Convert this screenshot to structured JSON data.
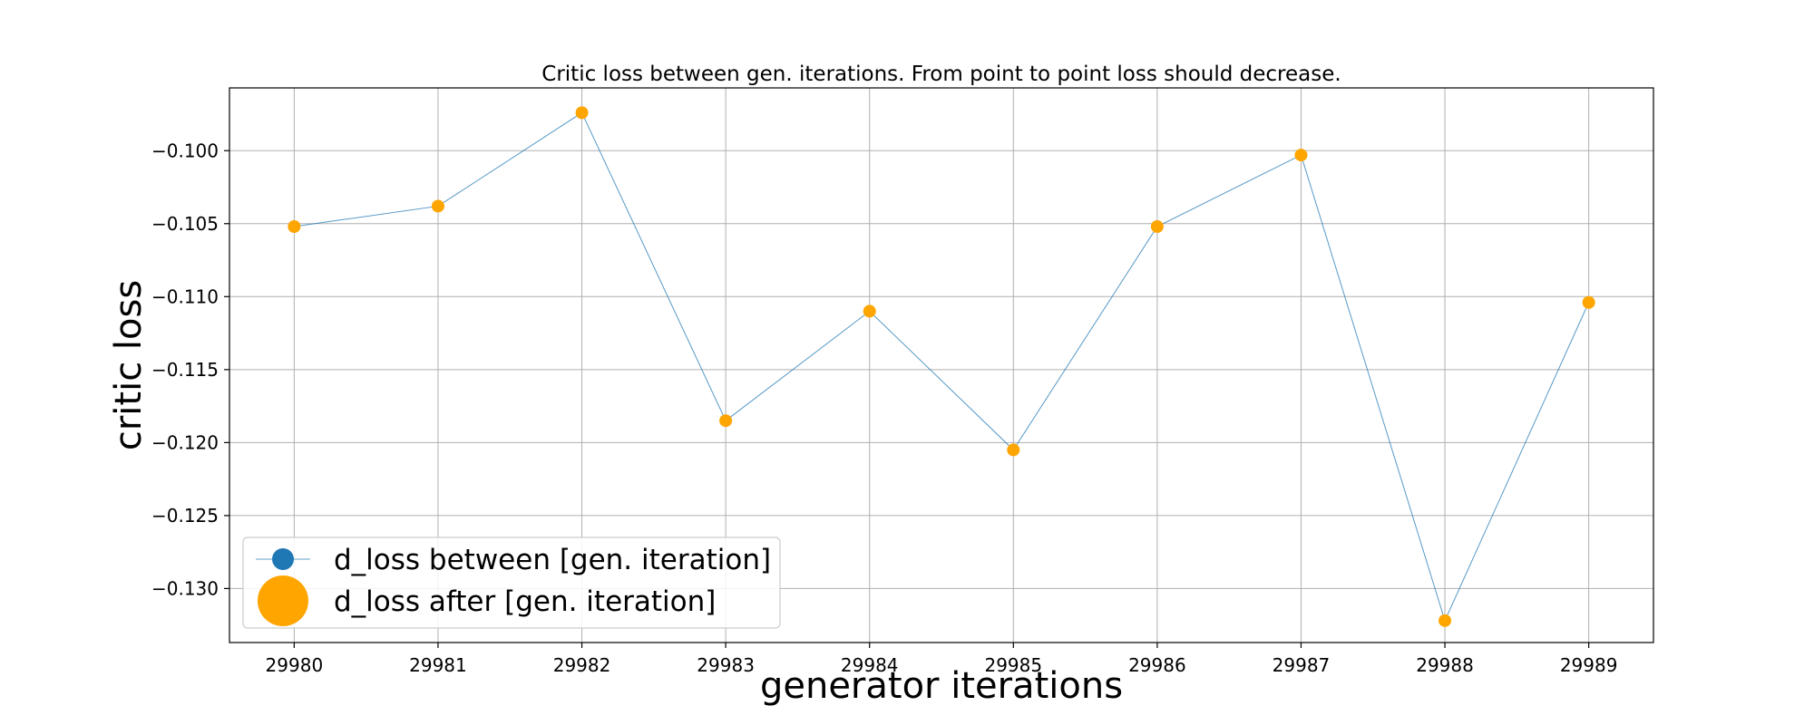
{
  "chart_data": {
    "type": "line",
    "title": "Critic loss between gen. iterations. From point to point loss should decrease.",
    "xlabel": "generator iterations",
    "ylabel": "critic loss",
    "x": [
      29980,
      29981,
      29982,
      29983,
      29984,
      29985,
      29986,
      29987,
      29988,
      29989
    ],
    "xlim": [
      29979.55,
      29989.45
    ],
    "ylim": [
      -0.1337,
      -0.0957
    ],
    "xticks": [
      "29980",
      "29981",
      "29982",
      "29983",
      "29984",
      "29985",
      "29986",
      "29987",
      "29988",
      "29989"
    ],
    "yticks": [
      {
        "value": -0.1,
        "label": "−0.100"
      },
      {
        "value": -0.105,
        "label": "−0.105"
      },
      {
        "value": -0.11,
        "label": "−0.110"
      },
      {
        "value": -0.115,
        "label": "−0.115"
      },
      {
        "value": -0.12,
        "label": "−0.120"
      },
      {
        "value": -0.125,
        "label": "−0.125"
      },
      {
        "value": -0.13,
        "label": "−0.130"
      }
    ],
    "grid": true,
    "legend_position": "lower-left",
    "series": [
      {
        "name": "d_loss between [gen. iteration]",
        "type": "line",
        "color": "#1f77b4",
        "values": [
          -0.1052,
          -0.1038,
          -0.0974,
          -0.1185,
          -0.111,
          -0.1205,
          -0.1052,
          -0.1003,
          -0.1322,
          -0.1104
        ]
      },
      {
        "name": "d_loss after [gen. iteration]",
        "type": "scatter",
        "color": "#ffa500",
        "values": [
          -0.1052,
          -0.1038,
          -0.0974,
          -0.1185,
          -0.111,
          -0.1205,
          -0.1052,
          -0.1003,
          -0.1322,
          -0.1104
        ]
      }
    ]
  }
}
